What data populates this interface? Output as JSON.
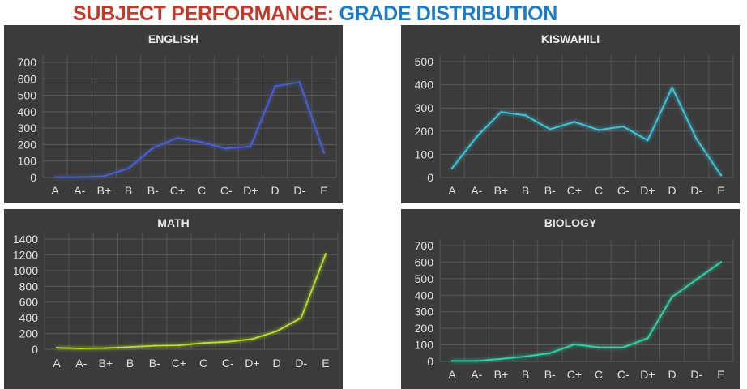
{
  "title": {
    "part1": "SUBJECT PERFORMANCE:",
    "part2": "GRADE DISTRIBUTION"
  },
  "colors": {
    "title_red": "#c0392b",
    "title_blue": "#1f7ac4",
    "panel_bg": "#3b3b3b"
  },
  "chart_data": [
    {
      "type": "line",
      "title": "ENGLISH",
      "color": "#4a5fd6",
      "categories": [
        "A",
        "A-",
        "B+",
        "B",
        "B-",
        "C+",
        "C",
        "C-",
        "D+",
        "D",
        "D-",
        "E"
      ],
      "values": [
        2,
        2,
        8,
        55,
        180,
        240,
        215,
        175,
        190,
        555,
        580,
        150
      ],
      "ylim": [
        0,
        700
      ],
      "yticks": [
        0,
        100,
        200,
        300,
        400,
        500,
        600,
        700
      ],
      "grid": true
    },
    {
      "type": "line",
      "title": "KISWAHILI",
      "color": "#3ec8e0",
      "categories": [
        "A",
        "A-",
        "B+",
        "B",
        "B-",
        "C+",
        "C",
        "C-",
        "D+",
        "D",
        "D-",
        "E"
      ],
      "values": [
        40,
        175,
        282,
        268,
        208,
        240,
        205,
        220,
        160,
        388,
        165,
        10
      ],
      "ylim": [
        0,
        500
      ],
      "yticks": [
        0,
        100,
        200,
        300,
        400,
        500
      ],
      "grid": true
    },
    {
      "type": "line",
      "title": "MATH",
      "color": "#b6e02a",
      "categories": [
        "A",
        "A-",
        "B+",
        "B",
        "B-",
        "C+",
        "C",
        "C-",
        "D+",
        "D",
        "D-",
        "E"
      ],
      "values": [
        20,
        10,
        15,
        30,
        45,
        50,
        80,
        95,
        130,
        230,
        400,
        1210
      ],
      "ylim": [
        0,
        1400
      ],
      "yticks": [
        0,
        200,
        400,
        600,
        800,
        1000,
        1200,
        1400
      ],
      "grid": true
    },
    {
      "type": "line",
      "title": "BIOLOGY",
      "color": "#2fd6a8",
      "categories": [
        "A",
        "A-",
        "B+",
        "B",
        "B-",
        "C+",
        "C",
        "C-",
        "D+",
        "D",
        "D-",
        "E"
      ],
      "values": [
        3,
        3,
        15,
        30,
        50,
        103,
        85,
        85,
        140,
        390,
        495,
        600
      ],
      "ylim": [
        0,
        700
      ],
      "yticks": [
        0,
        100,
        200,
        300,
        400,
        500,
        600,
        700
      ],
      "grid": true
    }
  ]
}
